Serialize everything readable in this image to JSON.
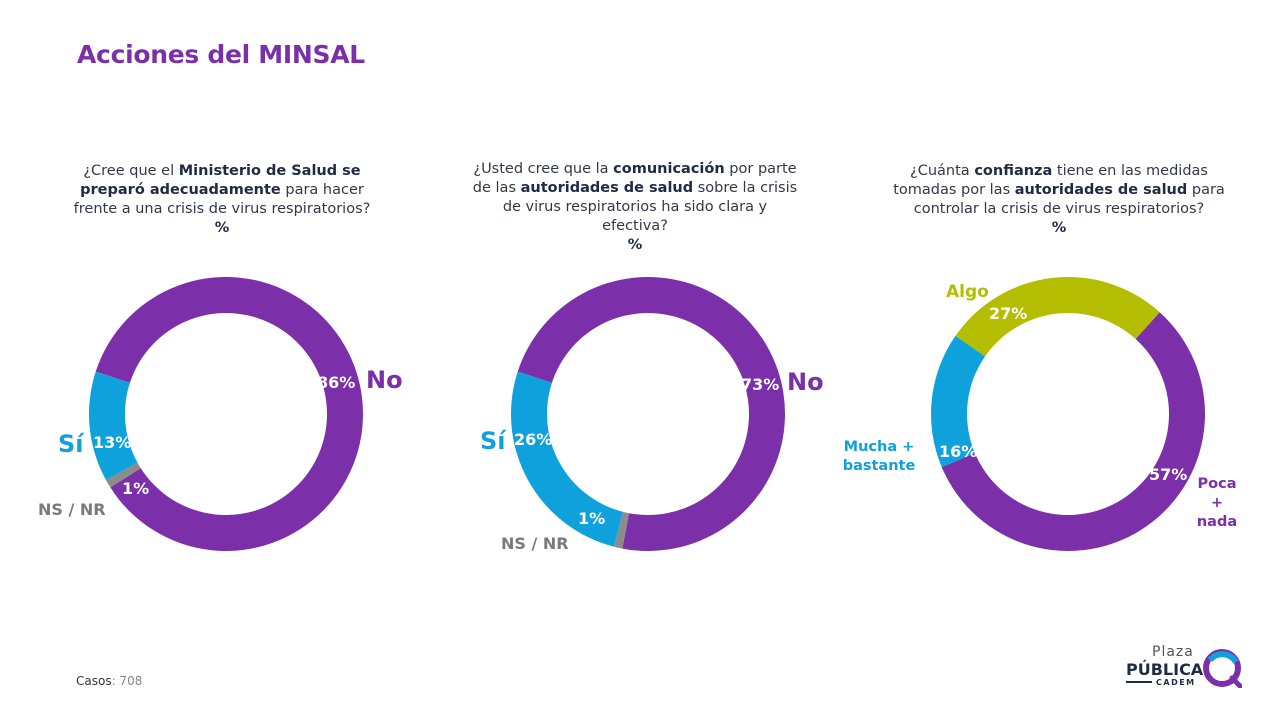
{
  "page": {
    "title": "Acciones del MINSAL",
    "casos_label": "Casos",
    "casos_value": ": 708"
  },
  "questions": [
    {
      "parts": [
        "¿Cree que el ",
        "Ministerio de Salud se preparó adecuadamente",
        " para hacer frente a una crisis de virus respiratorios?"
      ],
      "unit": "%"
    },
    {
      "parts": [
        "¿Usted cree que la ",
        "comunicación",
        " por parte de las ",
        "autoridades de salud",
        " sobre la crisis de virus respiratorios ha sido clara y efectiva?"
      ],
      "unit": "%"
    },
    {
      "parts": [
        "¿Cuánta ",
        "confianza",
        " tiene en las medidas tomadas por las ",
        "autoridades de salud",
        " para controlar la crisis de virus respiratorios?"
      ],
      "unit": "%"
    }
  ],
  "chart_data": [
    {
      "type": "pie",
      "slices": [
        {
          "label": "No",
          "value": 86,
          "value_label": "86%",
          "color": "#7b2fa8"
        },
        {
          "label": "NS / NR",
          "value": 1,
          "value_label": "1%",
          "color": "#8c8c8c"
        },
        {
          "label": "Sí",
          "value": 13,
          "value_label": "13%",
          "color": "#0ea1dc"
        }
      ]
    },
    {
      "type": "pie",
      "slices": [
        {
          "label": "No",
          "value": 73,
          "value_label": "73%",
          "color": "#7b2fa8"
        },
        {
          "label": "NS / NR",
          "value": 1,
          "value_label": "1%",
          "color": "#8c8c8c"
        },
        {
          "label": "Sí",
          "value": 26,
          "value_label": "26%",
          "color": "#0ea1dc"
        }
      ]
    },
    {
      "type": "pie",
      "slices": [
        {
          "label": "Poca + nada",
          "value": 57,
          "value_label": "57%",
          "color": "#7b2fa8"
        },
        {
          "label": "Mucha + bastante",
          "value": 16,
          "value_label": "16%",
          "color": "#0ea1dc"
        },
        {
          "label": "Algo",
          "value": 27,
          "value_label": "27%",
          "color": "#b5bd00"
        }
      ]
    }
  ],
  "logo": {
    "line1": "Plaza",
    "line2": "PÚBLICA",
    "line3": "CADEM"
  }
}
